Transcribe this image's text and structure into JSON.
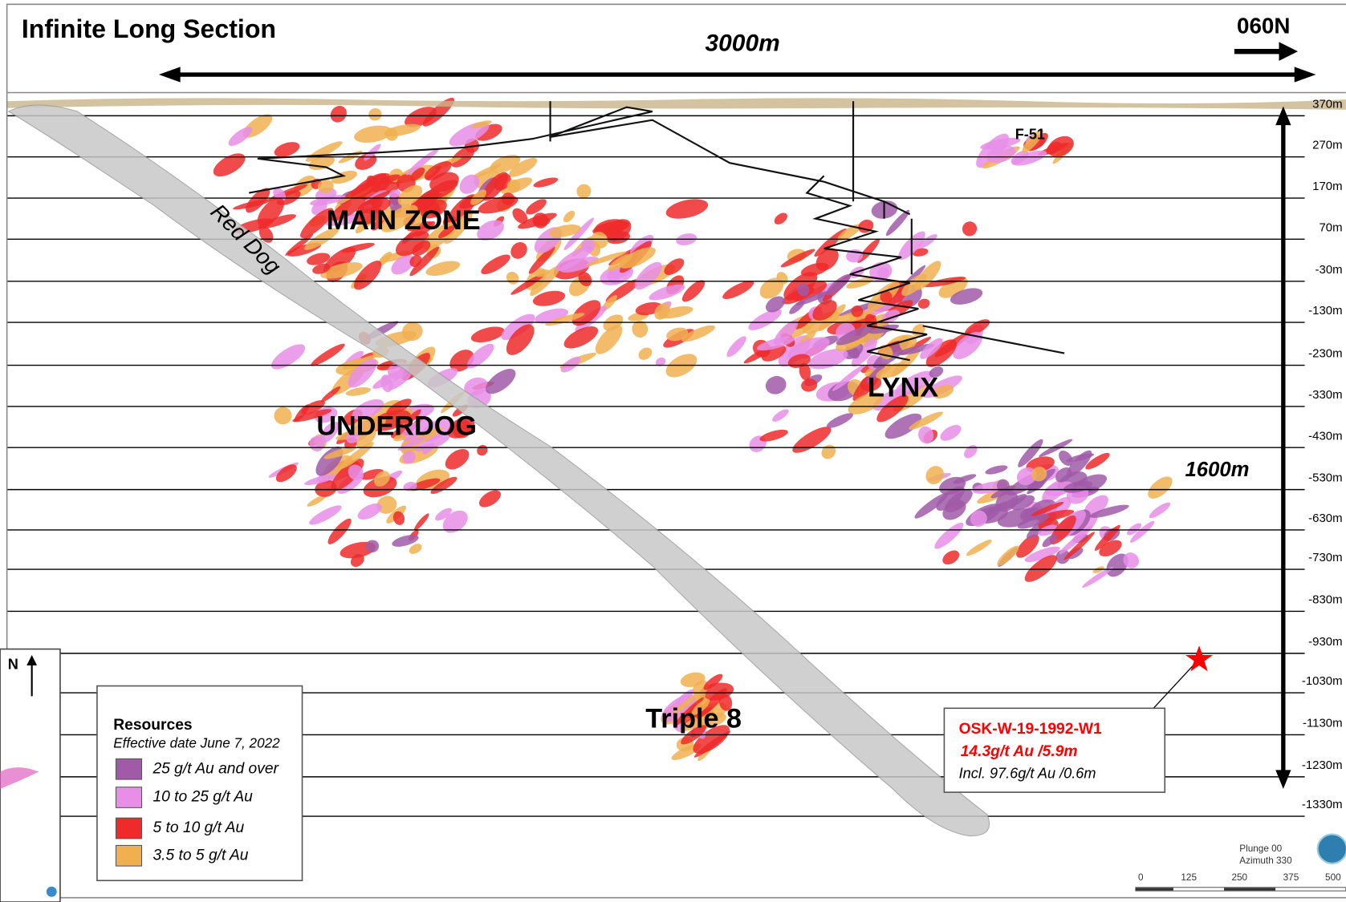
{
  "header": {
    "title": "Infinite Long Section",
    "orientation": "060N"
  },
  "dimensions": {
    "length": "3000m",
    "depth": "1600m"
  },
  "elevations": [
    "370m",
    "270m",
    "170m",
    "70m",
    "-30m",
    "-130m",
    "-230m",
    "-330m",
    "-430m",
    "-530m",
    "-630m",
    "-730m",
    "-830m",
    "-930m",
    "-1030m",
    "-1130m",
    "-1230m",
    "-1330m"
  ],
  "zones": {
    "main": "MAIN ZONE",
    "underdog": "UNDERDOG",
    "lynx": "LYNX",
    "triple8": "Triple 8",
    "dyke": "Red Dog",
    "fault": "F-51"
  },
  "legend": {
    "title": "Resources",
    "subtitle": "Effective date June 7, 2022",
    "items": [
      {
        "label": "25 g/t Au and over",
        "color": "#a05aa8"
      },
      {
        "label": "10 to 25 g/t Au",
        "color": "#e88ee8"
      },
      {
        "label": "5 to 10 g/t Au",
        "color": "#ee2a2a"
      },
      {
        "label": "3.5 to 5 g/t Au",
        "color": "#f0b050"
      }
    ]
  },
  "callout": {
    "hole": "OSK-W-19-1992-W1",
    "grade": "14.3g/t Au /5.9m",
    "included": "Incl. 97.6g/t Au /0.6m"
  },
  "scale": [
    "0",
    "125",
    "250",
    "375",
    "500"
  ],
  "view": {
    "plunge": "Plunge 00",
    "azimuth": "Azimuth 330"
  },
  "north": "N"
}
